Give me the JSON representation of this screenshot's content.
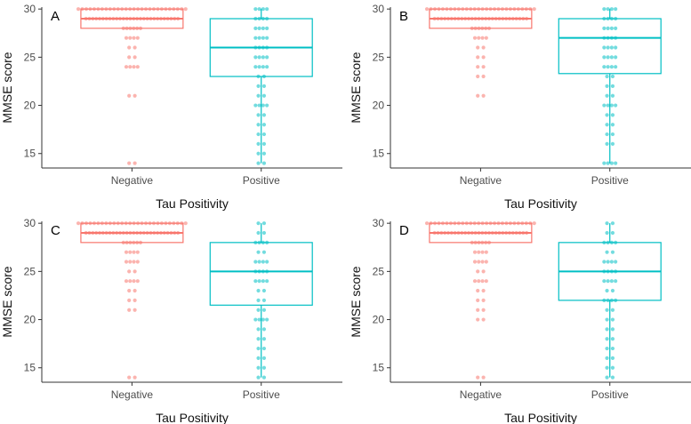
{
  "colors": {
    "negative": "#F8766D",
    "positive": "#00BFC4",
    "axis": "#333333"
  },
  "chart_data": [
    {
      "type": "boxplot",
      "panel_label": "A",
      "xlabel": "Tau Positivity",
      "ylabel": "MMSE score",
      "categories": [
        "Negative",
        "Positive"
      ],
      "ylim": [
        13.5,
        30.2
      ],
      "yticks": [
        15,
        20,
        25,
        30
      ],
      "boxes": [
        {
          "name": "Negative",
          "color": "#F8766D",
          "q1": 28,
          "median": 29,
          "q3": 30,
          "whisker_low": 28,
          "whisker_high": 30,
          "points": [
            30,
            30,
            30,
            30,
            30,
            30,
            29,
            29,
            29,
            29,
            28,
            28,
            28,
            27,
            27,
            26,
            25,
            24,
            24,
            21,
            14
          ]
        },
        {
          "name": "Positive",
          "color": "#00BFC4",
          "q1": 23,
          "median": 26,
          "q3": 29,
          "whisker_low": 14,
          "whisker_high": 30,
          "points": [
            30,
            30,
            29,
            29,
            28,
            28,
            27,
            27,
            26,
            26,
            25,
            25,
            24,
            24,
            23,
            22,
            21,
            20,
            20,
            19,
            18,
            17,
            16,
            15,
            14
          ]
        }
      ]
    },
    {
      "type": "boxplot",
      "panel_label": "B",
      "xlabel": "Tau Positivity",
      "ylabel": "MMSE score",
      "categories": [
        "Negative",
        "Positive"
      ],
      "ylim": [
        13.5,
        30.2
      ],
      "yticks": [
        15,
        20,
        25,
        30
      ],
      "boxes": [
        {
          "name": "Negative",
          "color": "#F8766D",
          "q1": 28,
          "median": 29,
          "q3": 30,
          "whisker_low": 28,
          "whisker_high": 30,
          "points": [
            30,
            30,
            30,
            30,
            30,
            30,
            29,
            29,
            29,
            29,
            28,
            28,
            28,
            27,
            27,
            26,
            25,
            24,
            23,
            21
          ]
        },
        {
          "name": "Positive",
          "color": "#00BFC4",
          "q1": 23.3,
          "median": 27,
          "q3": 29,
          "whisker_low": 14,
          "whisker_high": 30,
          "points": [
            30,
            30,
            29,
            29,
            28,
            28,
            27,
            27,
            26,
            26,
            25,
            25,
            24,
            24,
            23,
            22,
            21,
            20,
            20,
            19,
            18,
            17,
            16,
            14,
            14
          ]
        }
      ]
    },
    {
      "type": "boxplot",
      "panel_label": "C",
      "xlabel": "Tau Positivity",
      "ylabel": "MMSE score",
      "categories": [
        "Negative",
        "Positive"
      ],
      "ylim": [
        13.5,
        30.2
      ],
      "yticks": [
        15,
        20,
        25,
        30
      ],
      "boxes": [
        {
          "name": "Negative",
          "color": "#F8766D",
          "q1": 28,
          "median": 29,
          "q3": 30,
          "whisker_low": 28,
          "whisker_high": 30,
          "points": [
            30,
            30,
            30,
            30,
            30,
            30,
            29,
            29,
            29,
            29,
            28,
            28,
            28,
            27,
            27,
            26,
            26,
            25,
            24,
            24,
            23,
            22,
            21,
            14
          ]
        },
        {
          "name": "Positive",
          "color": "#00BFC4",
          "q1": 21.5,
          "median": 25,
          "q3": 28,
          "whisker_low": 14,
          "whisker_high": 30,
          "points": [
            30,
            29,
            28,
            28,
            27,
            26,
            26,
            25,
            25,
            24,
            24,
            23,
            22,
            21,
            20,
            20,
            19,
            18,
            17,
            16,
            15,
            14
          ]
        }
      ]
    },
    {
      "type": "boxplot",
      "panel_label": "D",
      "xlabel": "Tau Positivity",
      "ylabel": "MMSE score",
      "categories": [
        "Negative",
        "Positive"
      ],
      "ylim": [
        13.5,
        30.2
      ],
      "yticks": [
        15,
        20,
        25,
        30
      ],
      "boxes": [
        {
          "name": "Negative",
          "color": "#F8766D",
          "q1": 28,
          "median": 29,
          "q3": 30,
          "whisker_low": 28,
          "whisker_high": 30,
          "points": [
            30,
            30,
            30,
            30,
            30,
            30,
            29,
            29,
            29,
            29,
            28,
            28,
            28,
            27,
            27,
            26,
            26,
            25,
            24,
            24,
            23,
            22,
            21,
            20,
            14
          ]
        },
        {
          "name": "Positive",
          "color": "#00BFC4",
          "q1": 22,
          "median": 25,
          "q3": 28,
          "whisker_low": 14,
          "whisker_high": 30,
          "points": [
            30,
            29,
            28,
            28,
            27,
            26,
            26,
            25,
            25,
            24,
            24,
            23,
            22,
            22,
            21,
            20,
            19,
            18,
            17,
            16,
            15,
            14
          ]
        }
      ]
    }
  ]
}
